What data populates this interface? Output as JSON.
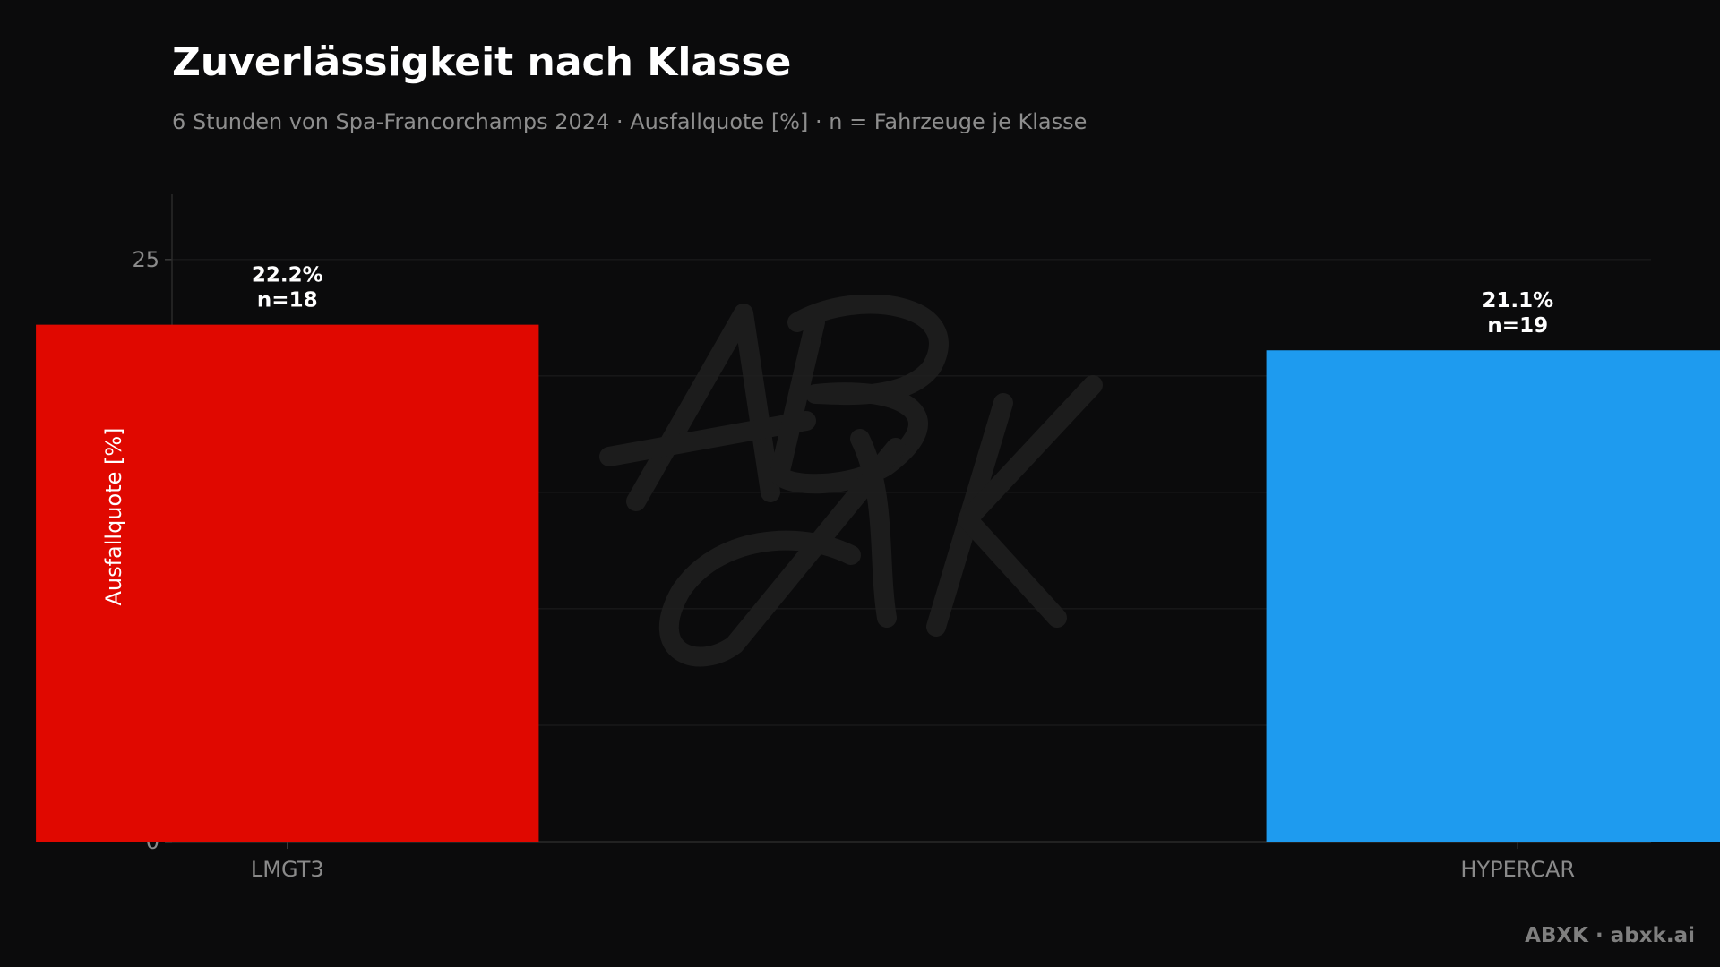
{
  "title": "Zuverlässigkeit nach Klasse",
  "subtitle": "6 Stunden von Spa-Francorchamps 2024 · Ausfallquote [%] · n = Fahrzeuge je Klasse",
  "brand": {
    "name": "ABXK",
    "separator": "·",
    "url": "abxk.ai"
  },
  "watermark": {
    "text": "ABXK"
  },
  "chart_data": {
    "type": "bar",
    "categories": [
      "LMGT3",
      "HYPERCAR"
    ],
    "values": [
      22.2,
      21.1
    ],
    "value_labels": [
      "22.2%",
      "21.1%"
    ],
    "counts": [
      "n=18",
      "n=19"
    ],
    "colors": [
      "#e00800",
      "#1e9bef"
    ],
    "ylabel": "Ausfallquote [%]",
    "ylim": [
      0,
      27.8
    ],
    "yticks": [
      0,
      5,
      10,
      15,
      20,
      25
    ],
    "grid": true,
    "legend": "none"
  }
}
